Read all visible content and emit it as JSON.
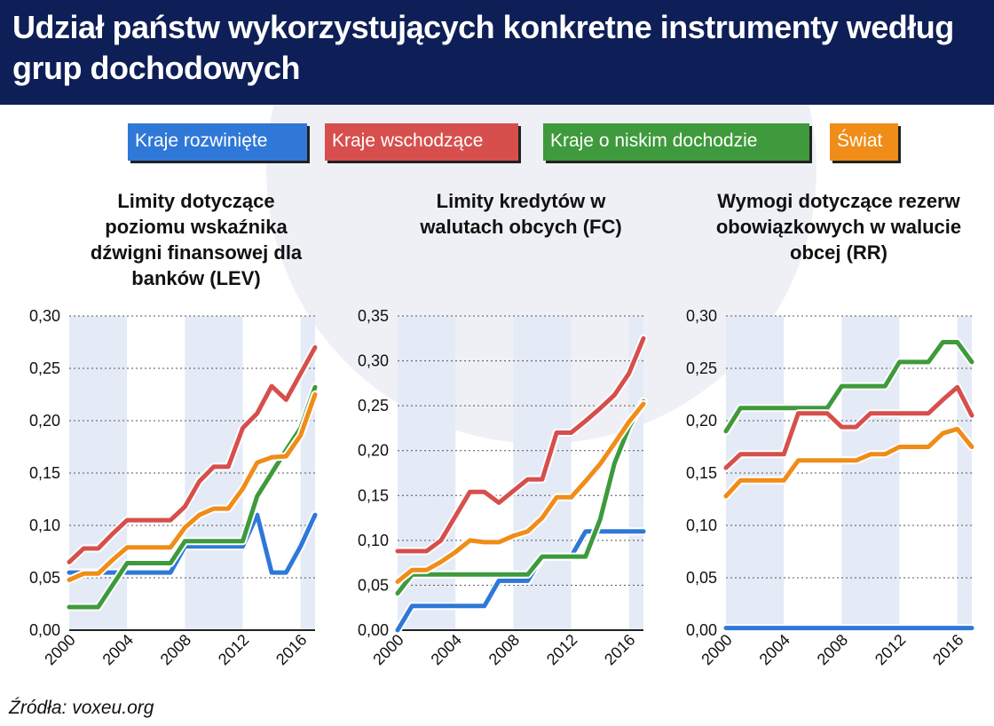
{
  "header": {
    "title": "Udział państw wykorzystujących konkretne instrumenty według grup dochodowych"
  },
  "legend": [
    {
      "label": "Kraje rozwinięte",
      "color": "#2f78d8"
    },
    {
      "label": "Kraje wschodzące",
      "color": "#d64f4c"
    },
    {
      "label": "Kraje o niskim dochodzie",
      "color": "#3e9a3c"
    },
    {
      "label": "Świat",
      "color": "#f08c18"
    }
  ],
  "source": "Źródła: voxeu.org",
  "chart_data": [
    {
      "type": "line",
      "title": "Limity dotyczące poziomu wskaźnika dźwigni finansowej dla banków (LEV)",
      "x": [
        2000,
        2001,
        2002,
        2003,
        2004,
        2005,
        2006,
        2007,
        2008,
        2009,
        2010,
        2011,
        2012,
        2013,
        2014,
        2015,
        2016,
        2017
      ],
      "ylim": [
        0,
        0.3
      ],
      "yticks": [
        "0,00",
        "0,05",
        "0,10",
        "0,15",
        "0,20",
        "0,25",
        "0,30"
      ],
      "xticks": [
        "2000",
        "2004",
        "2008",
        "2012",
        "2016"
      ],
      "grid": true,
      "series": [
        {
          "name": "Kraje rozwinięte",
          "color": "#2f78d8",
          "values": [
            0.055,
            0.055,
            0.055,
            0.055,
            0.055,
            0.055,
            0.055,
            0.055,
            0.08,
            0.08,
            0.08,
            0.08,
            0.08,
            0.11,
            0.055,
            0.055,
            0.08,
            0.11
          ]
        },
        {
          "name": "Kraje wschodzące",
          "color": "#d64f4c",
          "values": [
            0.065,
            0.078,
            0.078,
            0.092,
            0.105,
            0.105,
            0.105,
            0.105,
            0.118,
            0.142,
            0.156,
            0.156,
            0.193,
            0.207,
            0.233,
            0.22,
            0.245,
            0.27
          ]
        },
        {
          "name": "Kraje o niskim dochodzie",
          "color": "#3e9a3c",
          "values": [
            0.022,
            0.022,
            0.022,
            0.043,
            0.064,
            0.064,
            0.064,
            0.064,
            0.085,
            0.085,
            0.085,
            0.085,
            0.085,
            0.128,
            0.15,
            0.172,
            0.193,
            0.232
          ]
        },
        {
          "name": "Świat",
          "color": "#f08c18",
          "values": [
            0.048,
            0.054,
            0.054,
            0.067,
            0.079,
            0.079,
            0.079,
            0.079,
            0.098,
            0.11,
            0.116,
            0.116,
            0.135,
            0.16,
            0.165,
            0.166,
            0.186,
            0.225
          ]
        }
      ]
    },
    {
      "type": "line",
      "title": "Limity kredytów w walutach obcych (FC)",
      "x": [
        2000,
        2001,
        2002,
        2003,
        2004,
        2005,
        2006,
        2007,
        2008,
        2009,
        2010,
        2011,
        2012,
        2013,
        2014,
        2015,
        2016,
        2017
      ],
      "ylim": [
        0,
        0.35
      ],
      "yticks": [
        "0,00",
        "0,05",
        "0,10",
        "0,15",
        "0,20",
        "0,25",
        "0,30",
        "0,35"
      ],
      "xticks": [
        "2000",
        "2004",
        "2008",
        "2012",
        "2016"
      ],
      "grid": true,
      "series": [
        {
          "name": "Kraje rozwinięte",
          "color": "#2f78d8",
          "values": [
            0.0,
            0.027,
            0.027,
            0.027,
            0.027,
            0.027,
            0.027,
            0.055,
            0.055,
            0.055,
            0.082,
            0.082,
            0.082,
            0.11,
            0.11,
            0.11,
            0.11,
            0.11
          ]
        },
        {
          "name": "Kraje wschodzące",
          "color": "#d64f4c",
          "values": [
            0.088,
            0.088,
            0.088,
            0.1,
            0.127,
            0.154,
            0.154,
            0.142,
            0.155,
            0.168,
            0.168,
            0.22,
            0.22,
            0.233,
            0.247,
            0.262,
            0.286,
            0.325
          ]
        },
        {
          "name": "Kraje o niskim dochodzie",
          "color": "#3e9a3c",
          "values": [
            0.041,
            0.062,
            0.062,
            0.062,
            0.062,
            0.062,
            0.062,
            0.062,
            0.062,
            0.062,
            0.082,
            0.082,
            0.082,
            0.082,
            0.123,
            0.186,
            0.226,
            0.255
          ]
        },
        {
          "name": "Świat",
          "color": "#f08c18",
          "values": [
            0.054,
            0.067,
            0.067,
            0.076,
            0.087,
            0.1,
            0.098,
            0.098,
            0.105,
            0.11,
            0.125,
            0.148,
            0.148,
            0.166,
            0.185,
            0.208,
            0.232,
            0.252
          ]
        }
      ]
    },
    {
      "type": "line",
      "title": "Wymogi dotyczące rezerw obowiązkowych w walucie obcej (RR)",
      "x": [
        2000,
        2001,
        2002,
        2003,
        2004,
        2005,
        2006,
        2007,
        2008,
        2009,
        2010,
        2011,
        2012,
        2013,
        2014,
        2015,
        2016,
        2017
      ],
      "ylim": [
        0,
        0.3
      ],
      "yticks": [
        "0,00",
        "0,05",
        "0,10",
        "0,15",
        "0,20",
        "0,25",
        "0,30"
      ],
      "xticks": [
        "2000",
        "2004",
        "2008",
        "2012",
        "2016"
      ],
      "grid": true,
      "series": [
        {
          "name": "Kraje rozwinięte",
          "color": "#2f78d8",
          "values": [
            0.002,
            0.002,
            0.002,
            0.002,
            0.002,
            0.002,
            0.002,
            0.002,
            0.002,
            0.002,
            0.002,
            0.002,
            0.002,
            0.002,
            0.002,
            0.002,
            0.002,
            0.002
          ]
        },
        {
          "name": "Kraje wschodzące",
          "color": "#d64f4c",
          "values": [
            0.155,
            0.168,
            0.168,
            0.168,
            0.168,
            0.207,
            0.207,
            0.207,
            0.194,
            0.194,
            0.207,
            0.207,
            0.207,
            0.207,
            0.207,
            0.22,
            0.232,
            0.205
          ]
        },
        {
          "name": "Kraje o niskim dochodzie",
          "color": "#3e9a3c",
          "values": [
            0.19,
            0.212,
            0.212,
            0.212,
            0.212,
            0.212,
            0.212,
            0.212,
            0.233,
            0.233,
            0.233,
            0.233,
            0.256,
            0.256,
            0.256,
            0.275,
            0.275,
            0.256
          ]
        },
        {
          "name": "Świat",
          "color": "#f08c18",
          "values": [
            0.128,
            0.143,
            0.143,
            0.143,
            0.143,
            0.162,
            0.162,
            0.162,
            0.162,
            0.162,
            0.168,
            0.168,
            0.175,
            0.175,
            0.175,
            0.188,
            0.192,
            0.175
          ]
        }
      ]
    }
  ]
}
